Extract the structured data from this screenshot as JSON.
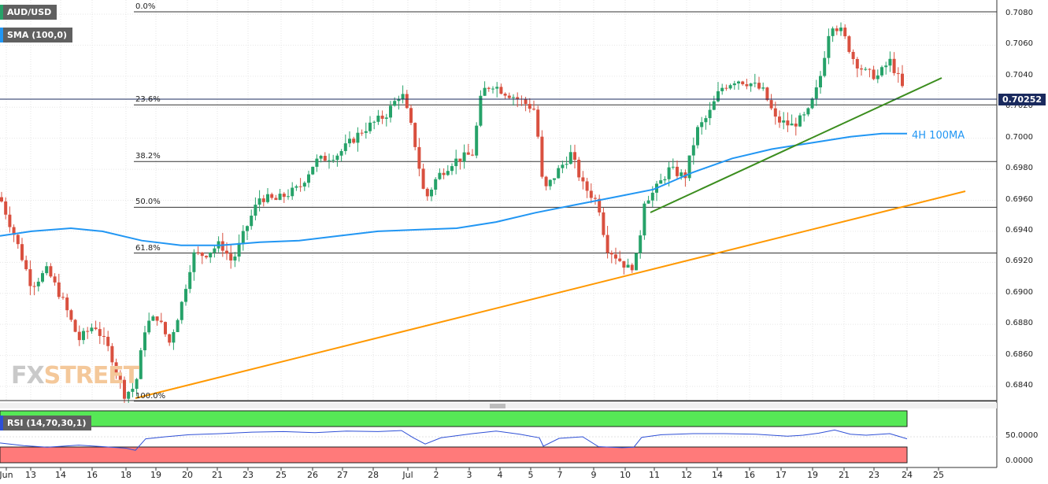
{
  "legend": {
    "symbol": "AUD/USD",
    "sma": "SMA (100,0)",
    "rsi": "RSI (14,70,30,1)"
  },
  "current_price": "0.70252",
  "ma_label": "4H 100MA",
  "logo": {
    "fx": "FX",
    "street": "STREET"
  },
  "colors": {
    "bull": "#26a269",
    "bear": "#d9503f",
    "sma": "#2196f3",
    "support_orange": "#ff9800",
    "support_green": "#3b8d1e",
    "rsi_line": "#2e4fd6",
    "rsi_overbought": "#56e856",
    "rsi_oversold": "#ff7a7a"
  },
  "chart_data": {
    "type": "candlestick",
    "y_ticks": [
      "0.7080",
      "0.7060",
      "0.7040",
      "0.7020",
      "0.7000",
      "0.6980",
      "0.6960",
      "0.6940",
      "0.6920",
      "0.6900",
      "0.6880",
      "0.6860",
      "0.6840"
    ],
    "ylim": [
      0.683,
      0.709
    ],
    "x_ticks": [
      "Jun",
      "13",
      "14",
      "16",
      "18",
      "19",
      "20",
      "21",
      "23",
      "25",
      "26",
      "27",
      "28",
      "Jul",
      "2",
      "3",
      "4",
      "5",
      "7",
      "9",
      "10",
      "11",
      "12",
      "14",
      "16",
      "17",
      "19",
      "21",
      "23",
      "24",
      "25"
    ],
    "fibonacci": [
      {
        "label": "0.0%",
        "value": 0.70815
      },
      {
        "label": "23.6%",
        "value": 0.70215
      },
      {
        "label": "38.2%",
        "value": 0.6985
      },
      {
        "label": "50.0%",
        "value": 0.69555
      },
      {
        "label": "61.8%",
        "value": 0.6926
      },
      {
        "label": "100.0%",
        "value": 0.68305
      }
    ],
    "rsi": {
      "ticks": [
        "50.0000",
        "0.0000"
      ],
      "upper": 70,
      "lower": 30
    }
  }
}
